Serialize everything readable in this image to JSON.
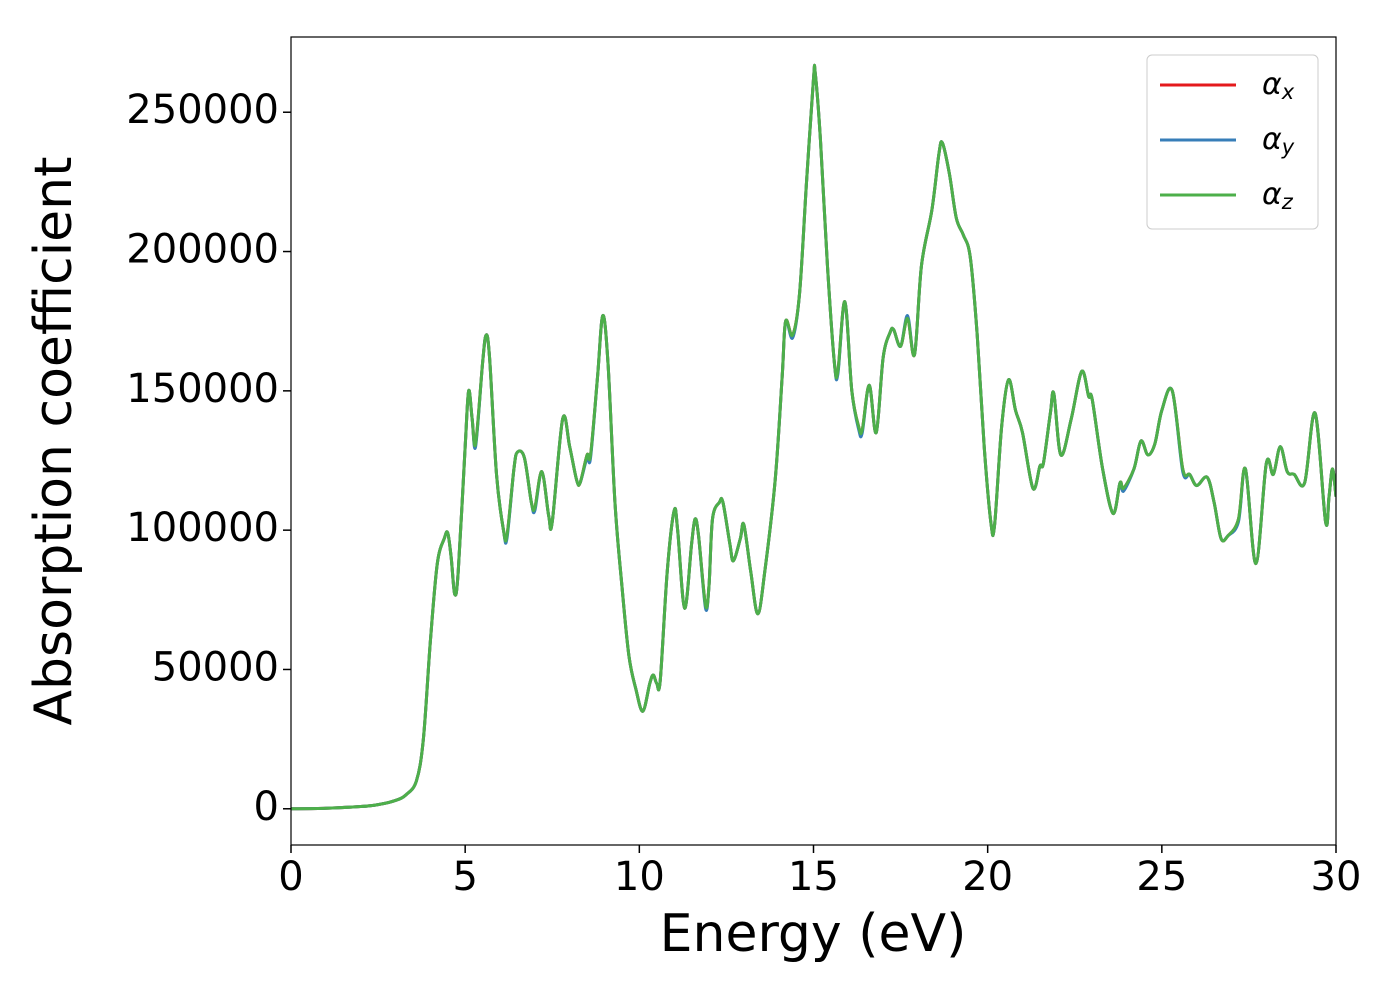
{
  "chart_data": {
    "type": "line",
    "xlabel": "Energy (eV)",
    "ylabel": "Absorption coefficient",
    "x": [
      0,
      1,
      2,
      2.5,
      3,
      3.3,
      3.6,
      3.8,
      4,
      4.2,
      4.4,
      4.5,
      4.6,
      4.7,
      4.8,
      5,
      5.1,
      5.2,
      5.3,
      5.5,
      5.6,
      5.7,
      5.9,
      6.1,
      6.2,
      6.4,
      6.5,
      6.7,
      6.9,
      7,
      7.2,
      7.4,
      7.5,
      7.8,
      8,
      8.2,
      8.3,
      8.5,
      8.6,
      8.8,
      8.95,
      9.1,
      9.3,
      9.5,
      9.7,
      9.9,
      10.1,
      10.3,
      10.4,
      10.5,
      10.6,
      10.8,
      11,
      11.1,
      11.3,
      11.5,
      11.6,
      11.7,
      11.9,
      12,
      12.1,
      12.3,
      12.4,
      12.6,
      12.7,
      12.9,
      13,
      13.2,
      13.4,
      13.6,
      13.9,
      14.1,
      14.2,
      14.4,
      14.6,
      14.8,
      15,
      15.05,
      15.2,
      15.4,
      15.6,
      15.7,
      15.9,
      16.1,
      16.3,
      16.4,
      16.6,
      16.8,
      17,
      17.2,
      17.3,
      17.5,
      17.7,
      17.9,
      18.1,
      18.4,
      18.6,
      18.7,
      18.9,
      19.1,
      19.3,
      19.5,
      19.7,
      19.9,
      20.1,
      20.2,
      20.4,
      20.6,
      20.8,
      21,
      21.3,
      21.5,
      21.6,
      21.8,
      21.9,
      22.1,
      22.4,
      22.7,
      22.9,
      23,
      23.3,
      23.6,
      23.8,
      23.9,
      24.2,
      24.4,
      24.6,
      24.8,
      25,
      25.3,
      25.6,
      25.8,
      26,
      26.3,
      26.5,
      26.7,
      26.9,
      27.2,
      27.4,
      27.7,
      28,
      28.2,
      28.4,
      28.6,
      28.8,
      29.1,
      29.4,
      29.7,
      29.8,
      29.9,
      30
    ],
    "series": [
      {
        "name": "αx",
        "color": "#e41a1c",
        "values": [
          0,
          200,
          800,
          1500,
          3000,
          5000,
          10000,
          25000,
          60000,
          88000,
          97000,
          99000,
          90000,
          77000,
          85000,
          130000,
          150000,
          140000,
          131000,
          160000,
          170000,
          162000,
          120000,
          100000,
          98000,
          122000,
          128000,
          126000,
          110000,
          108000,
          121000,
          105000,
          103000,
          140000,
          130000,
          118000,
          117000,
          127000,
          127000,
          155000,
          177000,
          160000,
          110000,
          80000,
          55000,
          43000,
          35000,
          45000,
          48000,
          45000,
          46000,
          85000,
          107000,
          100000,
          72000,
          95000,
          104000,
          98000,
          73000,
          80000,
          104000,
          110000,
          110000,
          95000,
          89000,
          97000,
          102000,
          85000,
          70000,
          85000,
          118000,
          155000,
          175000,
          170000,
          185000,
          225000,
          262000,
          264000,
          240000,
          195000,
          160000,
          157000,
          182000,
          150000,
          137000,
          136000,
          152000,
          135000,
          162000,
          171000,
          172000,
          166000,
          176000,
          163000,
          195000,
          215000,
          235000,
          239000,
          228000,
          212000,
          206000,
          198000,
          170000,
          130000,
          102000,
          102000,
          137000,
          154000,
          143000,
          135000,
          115000,
          123000,
          124000,
          142000,
          149000,
          127000,
          140000,
          157000,
          148000,
          147000,
          122000,
          106000,
          117000,
          115000,
          122000,
          132000,
          127000,
          131000,
          143000,
          150000,
          122000,
          120000,
          116000,
          119000,
          110000,
          97000,
          98000,
          104000,
          122000,
          88000,
          124000,
          120000,
          130000,
          121000,
          120000,
          117000,
          142000,
          103000,
          112000,
          122000,
          112000
        ]
      },
      {
        "name": "αy",
        "color": "#377eb8",
        "values": [
          0,
          200,
          800,
          1500,
          3000,
          5000,
          10000,
          25000,
          60000,
          88000,
          97000,
          99000,
          90000,
          77000,
          85000,
          130000,
          150000,
          140000,
          130000,
          160000,
          170000,
          162000,
          120000,
          100000,
          97000,
          122000,
          128000,
          126000,
          110000,
          107000,
          121000,
          105000,
          103000,
          140000,
          130000,
          118000,
          117000,
          126000,
          126000,
          155000,
          177000,
          160000,
          110000,
          80000,
          55000,
          43000,
          35000,
          45000,
          48000,
          45000,
          46000,
          85000,
          107000,
          100000,
          72000,
          95000,
          104000,
          98000,
          72000,
          80000,
          104000,
          110000,
          110000,
          95000,
          89000,
          97000,
          102000,
          85000,
          70000,
          85000,
          118000,
          155000,
          175000,
          169000,
          185000,
          225000,
          262000,
          264000,
          240000,
          195000,
          160000,
          156000,
          182000,
          150000,
          136000,
          135000,
          152000,
          135000,
          162000,
          171000,
          172000,
          166000,
          177000,
          163000,
          195000,
          215000,
          235000,
          239000,
          228000,
          212000,
          206000,
          198000,
          170000,
          130000,
          102000,
          102000,
          137000,
          154000,
          143000,
          135000,
          115000,
          123000,
          124000,
          142000,
          149000,
          127000,
          140000,
          157000,
          148000,
          147000,
          122000,
          106000,
          117000,
          114000,
          122000,
          132000,
          127000,
          131000,
          143000,
          150000,
          121000,
          120000,
          116000,
          119000,
          110000,
          97000,
          98000,
          103000,
          122000,
          88000,
          124000,
          120000,
          130000,
          121000,
          120000,
          117000,
          142000,
          103000,
          112000,
          122000,
          112000
        ]
      },
      {
        "name": "αz",
        "color": "#4daf4a",
        "values": [
          0,
          200,
          800,
          1500,
          3000,
          5000,
          10000,
          25000,
          60000,
          88000,
          97000,
          99000,
          90000,
          77000,
          85000,
          130000,
          150000,
          140000,
          131000,
          160000,
          170000,
          162000,
          120000,
          100000,
          98000,
          122000,
          128000,
          126000,
          110000,
          108000,
          121000,
          105000,
          103000,
          140000,
          130000,
          118000,
          117000,
          127000,
          127000,
          155000,
          177000,
          160000,
          110000,
          80000,
          55000,
          43000,
          35000,
          45000,
          48000,
          45000,
          46000,
          85000,
          107000,
          100000,
          72000,
          95000,
          104000,
          98000,
          73000,
          80000,
          104000,
          110000,
          110000,
          95000,
          89000,
          97000,
          102000,
          85000,
          70000,
          85000,
          118000,
          155000,
          175000,
          170000,
          185000,
          225000,
          262000,
          264000,
          240000,
          195000,
          160000,
          157000,
          182000,
          150000,
          137000,
          136000,
          152000,
          135000,
          162000,
          171000,
          172000,
          166000,
          176000,
          163000,
          195000,
          215000,
          235000,
          239000,
          228000,
          212000,
          206000,
          198000,
          170000,
          130000,
          102000,
          102000,
          137000,
          154000,
          143000,
          135000,
          115000,
          123000,
          124000,
          142000,
          149000,
          127000,
          140000,
          157000,
          148000,
          147000,
          122000,
          106000,
          117000,
          115000,
          122000,
          132000,
          127000,
          131000,
          143000,
          150000,
          122000,
          120000,
          116000,
          119000,
          110000,
          97000,
          98000,
          104000,
          122000,
          88000,
          124000,
          120000,
          130000,
          121000,
          120000,
          117000,
          142000,
          103000,
          112000,
          122000,
          112000
        ]
      }
    ],
    "xlim": [
      0,
      30
    ],
    "xticks": [
      0,
      5,
      10,
      15,
      20,
      25,
      30
    ],
    "ylim": [
      -13000,
      277000
    ],
    "yticks": [
      0,
      50000,
      100000,
      150000,
      200000,
      250000
    ],
    "grid": false,
    "legend": "upper right"
  }
}
